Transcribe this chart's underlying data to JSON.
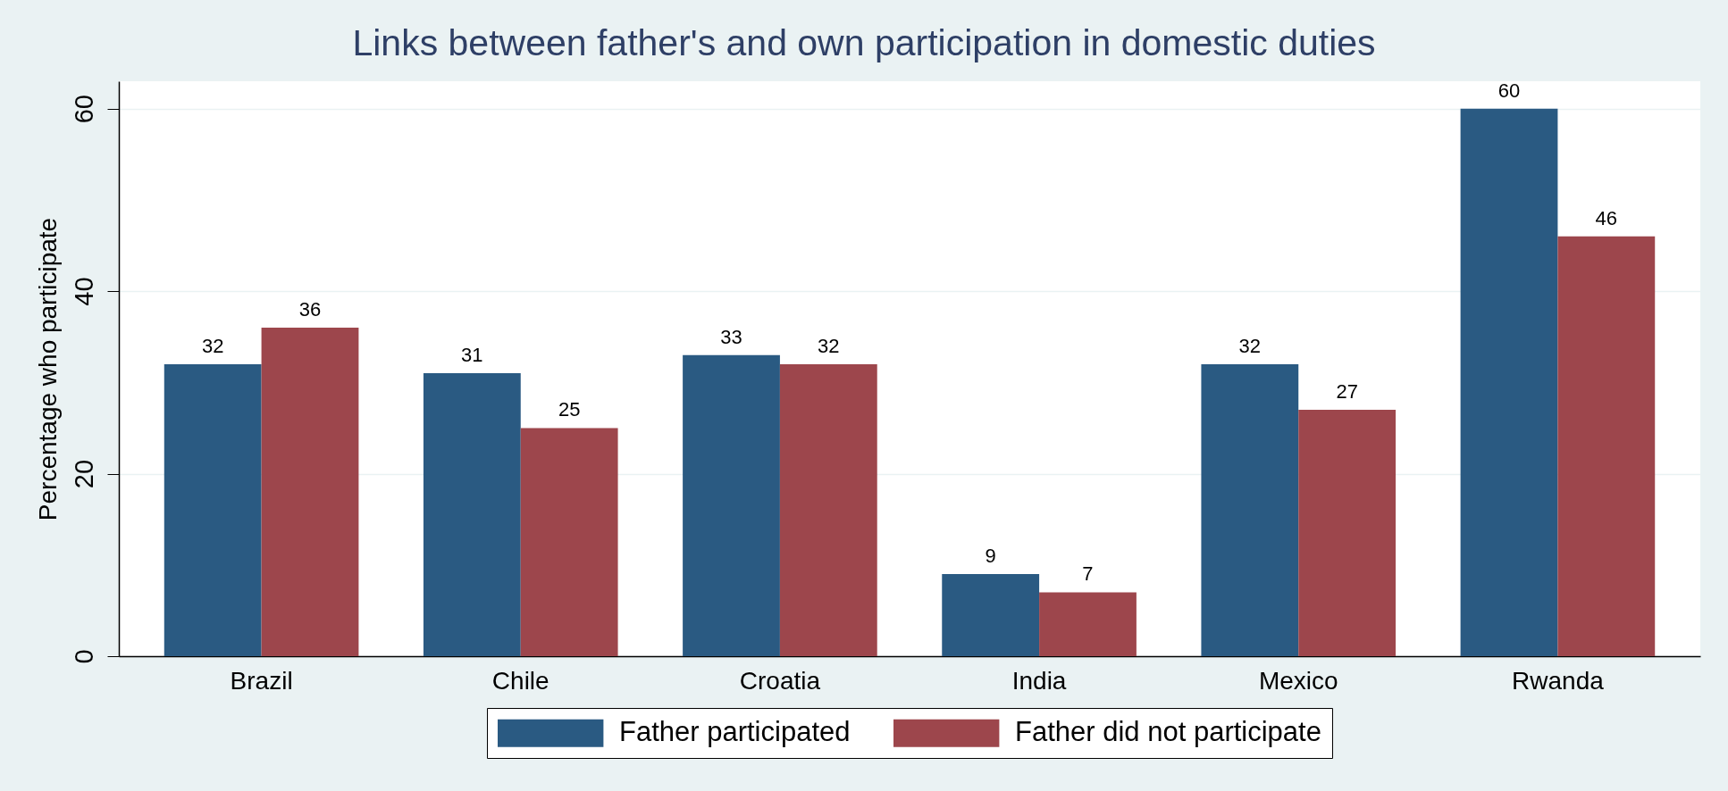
{
  "chart_data": {
    "type": "bar",
    "title": "Links between father's and own participation in domestic duties",
    "ylabel": "Percentage who participate",
    "categories": [
      "Brazil",
      "Chile",
      "Croatia",
      "India",
      "Mexico",
      "Rwanda"
    ],
    "series": [
      {
        "name": "Father participated",
        "color": "#2a5a82",
        "values": [
          32,
          31,
          33,
          9,
          32,
          60
        ]
      },
      {
        "name": "Father did not participate",
        "color": "#9d464c",
        "values": [
          36,
          25,
          32,
          7,
          27,
          46
        ]
      }
    ],
    "ylim": [
      0,
      63
    ],
    "yticks": [
      0,
      20,
      40,
      60
    ],
    "grid": "y",
    "legend": "bottom",
    "data_labels": true
  }
}
